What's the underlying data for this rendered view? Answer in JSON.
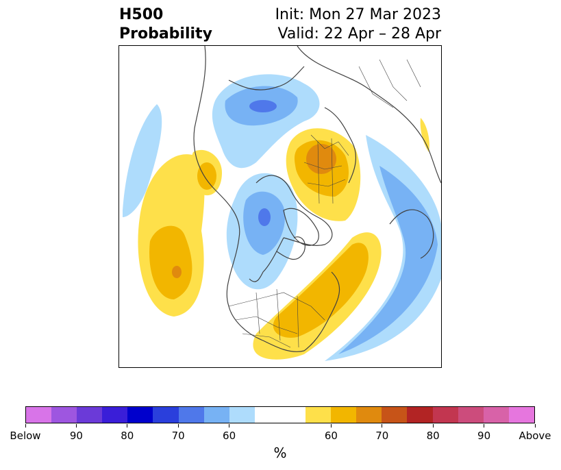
{
  "title": {
    "left_line1": "H500",
    "left_line2": "Probability",
    "right_line1": "Init: Mon 27 Mar 2023",
    "right_line2": "Valid: 22 Apr – 28 Apr"
  },
  "map": {
    "projection": "north-polar-stereographic",
    "variable": "500 hPa height anomaly probability",
    "land_outline_color": "#404040",
    "anomalies": [
      {
        "region": "North Pacific",
        "category": "above",
        "max_probability": 70
      },
      {
        "region": "Western Canada / Alaska",
        "category": "below",
        "max_probability": 70
      },
      {
        "region": "Eastern United States",
        "category": "above",
        "max_probability": 65
      },
      {
        "region": "Central Siberia",
        "category": "below",
        "max_probability": 70
      },
      {
        "region": "Eastern Europe / Western Russia",
        "category": "above",
        "max_probability": 70
      },
      {
        "region": "North Atlantic",
        "category": "below",
        "max_probability": 65
      }
    ]
  },
  "colorbar": {
    "colors": [
      "#d874e8",
      "#9e56e0",
      "#6b3ad8",
      "#3a1ed8",
      "#0000cc",
      "#2a3fdc",
      "#4f78ea",
      "#77b2f4",
      "#aedcfc",
      "#ffffff",
      "#ffffff",
      "#fee04a",
      "#f2b600",
      "#e08a0e",
      "#c75418",
      "#b22424",
      "#c23650",
      "#cc4c7c",
      "#d862a8",
      "#e676de"
    ],
    "labels": [
      "Below",
      "90",
      "80",
      "70",
      "60",
      "60",
      "70",
      "80",
      "90",
      "Above"
    ],
    "unit": "%"
  }
}
